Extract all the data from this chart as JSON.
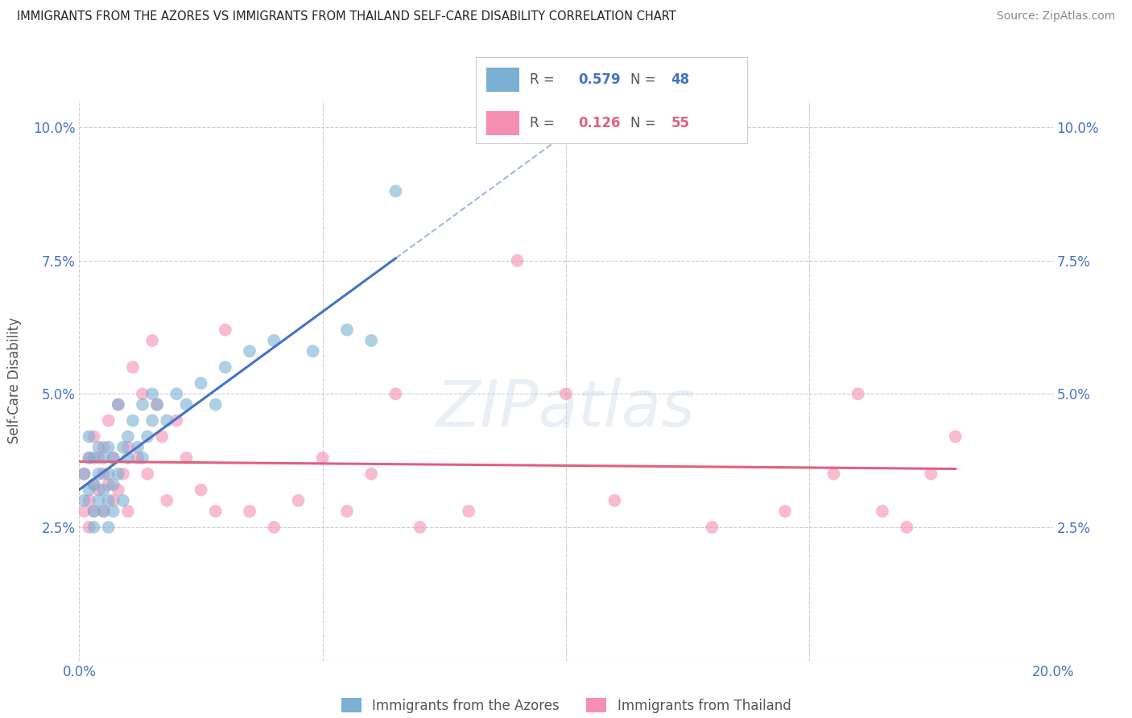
{
  "title": "IMMIGRANTS FROM THE AZORES VS IMMIGRANTS FROM THAILAND SELF-CARE DISABILITY CORRELATION CHART",
  "source": "Source: ZipAtlas.com",
  "ylabel": "Self-Care Disability",
  "xlim": [
    0.0,
    0.2
  ],
  "ylim": [
    0.0,
    0.105
  ],
  "xticks": [
    0.0,
    0.05,
    0.1,
    0.15,
    0.2
  ],
  "yticks": [
    0.025,
    0.05,
    0.075,
    0.1
  ],
  "xtick_labels_bottom": [
    "0.0%",
    "",
    "",
    "",
    "20.0%"
  ],
  "ytick_labels": [
    "2.5%",
    "5.0%",
    "7.5%",
    "10.0%"
  ],
  "legend_labels": [
    "Immigrants from the Azores",
    "Immigrants from Thailand"
  ],
  "legend_R": [
    "0.579",
    "0.126"
  ],
  "legend_N": [
    "48",
    "55"
  ],
  "color_blue": "#7BAFD4",
  "color_pink": "#F48FB1",
  "color_blue_dark": "#4472C4",
  "color_pink_dark": "#E06080",
  "watermark": "ZIPatlas",
  "azores_x": [
    0.001,
    0.001,
    0.002,
    0.002,
    0.002,
    0.003,
    0.003,
    0.003,
    0.003,
    0.004,
    0.004,
    0.004,
    0.005,
    0.005,
    0.005,
    0.006,
    0.006,
    0.006,
    0.006,
    0.007,
    0.007,
    0.007,
    0.008,
    0.008,
    0.009,
    0.009,
    0.01,
    0.01,
    0.011,
    0.012,
    0.013,
    0.013,
    0.014,
    0.015,
    0.015,
    0.016,
    0.018,
    0.02,
    0.022,
    0.025,
    0.028,
    0.03,
    0.035,
    0.04,
    0.048,
    0.055,
    0.06,
    0.065
  ],
  "azores_y": [
    0.03,
    0.035,
    0.038,
    0.032,
    0.042,
    0.028,
    0.033,
    0.038,
    0.025,
    0.04,
    0.035,
    0.03,
    0.032,
    0.038,
    0.028,
    0.03,
    0.035,
    0.04,
    0.025,
    0.033,
    0.038,
    0.028,
    0.035,
    0.048,
    0.03,
    0.04,
    0.038,
    0.042,
    0.045,
    0.04,
    0.038,
    0.048,
    0.042,
    0.045,
    0.05,
    0.048,
    0.045,
    0.05,
    0.048,
    0.052,
    0.048,
    0.055,
    0.058,
    0.06,
    0.058,
    0.062,
    0.06,
    0.088
  ],
  "thailand_x": [
    0.001,
    0.001,
    0.002,
    0.002,
    0.002,
    0.003,
    0.003,
    0.003,
    0.004,
    0.004,
    0.005,
    0.005,
    0.005,
    0.006,
    0.006,
    0.007,
    0.007,
    0.008,
    0.008,
    0.009,
    0.01,
    0.01,
    0.011,
    0.012,
    0.013,
    0.014,
    0.015,
    0.016,
    0.017,
    0.018,
    0.02,
    0.022,
    0.025,
    0.028,
    0.03,
    0.035,
    0.04,
    0.045,
    0.05,
    0.055,
    0.06,
    0.065,
    0.07,
    0.08,
    0.09,
    0.1,
    0.11,
    0.13,
    0.145,
    0.155,
    0.16,
    0.165,
    0.17,
    0.175,
    0.18
  ],
  "thailand_y": [
    0.028,
    0.035,
    0.03,
    0.038,
    0.025,
    0.033,
    0.042,
    0.028,
    0.038,
    0.032,
    0.035,
    0.04,
    0.028,
    0.033,
    0.045,
    0.03,
    0.038,
    0.032,
    0.048,
    0.035,
    0.04,
    0.028,
    0.055,
    0.038,
    0.05,
    0.035,
    0.06,
    0.048,
    0.042,
    0.03,
    0.045,
    0.038,
    0.032,
    0.028,
    0.062,
    0.028,
    0.025,
    0.03,
    0.038,
    0.028,
    0.035,
    0.05,
    0.025,
    0.028,
    0.075,
    0.05,
    0.03,
    0.025,
    0.028,
    0.035,
    0.05,
    0.028,
    0.025,
    0.035,
    0.042
  ]
}
